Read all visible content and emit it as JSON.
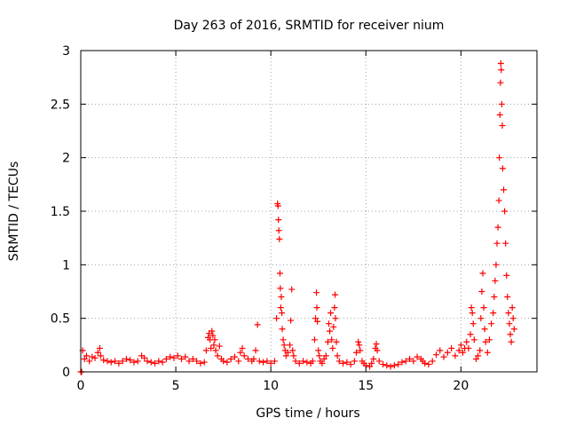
{
  "chart_data": {
    "type": "scatter",
    "title": "Day 263 of 2016, SRMTID for receiver nium",
    "xlabel": "GPS time / hours",
    "ylabel": "SRMTID / TECUs",
    "xlim": [
      0,
      24
    ],
    "ylim": [
      0,
      3
    ],
    "x_ticks": [
      {
        "value": 0,
        "label": "0"
      },
      {
        "value": 5,
        "label": "5"
      },
      {
        "value": 10,
        "label": "10"
      },
      {
        "value": 15,
        "label": "15"
      },
      {
        "value": 20,
        "label": "20"
      }
    ],
    "y_ticks": [
      {
        "value": 0,
        "label": "0"
      },
      {
        "value": 0.5,
        "label": "0.5"
      },
      {
        "value": 1,
        "label": "1"
      },
      {
        "value": 1.5,
        "label": "1.5"
      },
      {
        "value": 2,
        "label": "2"
      },
      {
        "value": 2.5,
        "label": "2.5"
      },
      {
        "value": 3,
        "label": "3"
      }
    ],
    "grid": true,
    "marker": "plus",
    "color": "#ff0000",
    "series": [
      {
        "name": "SRMTID",
        "points": [
          [
            0.0,
            0.0
          ],
          [
            0.05,
            0.0
          ],
          [
            0.1,
            0.2
          ],
          [
            0.2,
            0.12
          ],
          [
            0.3,
            0.15
          ],
          [
            0.45,
            0.1
          ],
          [
            0.6,
            0.14
          ],
          [
            0.75,
            0.13
          ],
          [
            0.9,
            0.18
          ],
          [
            1.0,
            0.22
          ],
          [
            1.05,
            0.15
          ],
          [
            1.2,
            0.11
          ],
          [
            1.4,
            0.1
          ],
          [
            1.6,
            0.09
          ],
          [
            1.8,
            0.1
          ],
          [
            2.0,
            0.08
          ],
          [
            2.2,
            0.1
          ],
          [
            2.4,
            0.12
          ],
          [
            2.6,
            0.11
          ],
          [
            2.8,
            0.09
          ],
          [
            3.0,
            0.1
          ],
          [
            3.2,
            0.15
          ],
          [
            3.35,
            0.13
          ],
          [
            3.5,
            0.1
          ],
          [
            3.7,
            0.09
          ],
          [
            3.9,
            0.08
          ],
          [
            4.1,
            0.1
          ],
          [
            4.3,
            0.09
          ],
          [
            4.5,
            0.12
          ],
          [
            4.7,
            0.14
          ],
          [
            4.9,
            0.13
          ],
          [
            5.1,
            0.15
          ],
          [
            5.3,
            0.12
          ],
          [
            5.5,
            0.14
          ],
          [
            5.7,
            0.1
          ],
          [
            5.9,
            0.12
          ],
          [
            6.1,
            0.1
          ],
          [
            6.3,
            0.08
          ],
          [
            6.5,
            0.09
          ],
          [
            6.6,
            0.2
          ],
          [
            6.7,
            0.32
          ],
          [
            6.75,
            0.36
          ],
          [
            6.8,
            0.3
          ],
          [
            6.85,
            0.22
          ],
          [
            6.9,
            0.38
          ],
          [
            6.95,
            0.34
          ],
          [
            7.0,
            0.25
          ],
          [
            7.05,
            0.3
          ],
          [
            7.1,
            0.2
          ],
          [
            7.2,
            0.15
          ],
          [
            7.3,
            0.24
          ],
          [
            7.4,
            0.12
          ],
          [
            7.5,
            0.1
          ],
          [
            7.7,
            0.09
          ],
          [
            7.9,
            0.12
          ],
          [
            8.1,
            0.14
          ],
          [
            8.3,
            0.1
          ],
          [
            8.4,
            0.18
          ],
          [
            8.5,
            0.22
          ],
          [
            8.6,
            0.15
          ],
          [
            8.8,
            0.12
          ],
          [
            9.0,
            0.1
          ],
          [
            9.1,
            0.12
          ],
          [
            9.2,
            0.2
          ],
          [
            9.3,
            0.44
          ],
          [
            9.4,
            0.1
          ],
          [
            9.6,
            0.09
          ],
          [
            9.8,
            0.1
          ],
          [
            10.0,
            0.08
          ],
          [
            10.2,
            0.1
          ],
          [
            10.3,
            0.5
          ],
          [
            10.35,
            1.57
          ],
          [
            10.38,
            1.55
          ],
          [
            10.4,
            1.42
          ],
          [
            10.42,
            1.32
          ],
          [
            10.45,
            1.24
          ],
          [
            10.48,
            0.92
          ],
          [
            10.5,
            0.78
          ],
          [
            10.52,
            0.6
          ],
          [
            10.55,
            0.7
          ],
          [
            10.58,
            0.55
          ],
          [
            10.6,
            0.4
          ],
          [
            10.65,
            0.3
          ],
          [
            10.7,
            0.25
          ],
          [
            10.75,
            0.2
          ],
          [
            10.8,
            0.15
          ],
          [
            10.9,
            0.18
          ],
          [
            11.0,
            0.25
          ],
          [
            11.05,
            0.48
          ],
          [
            11.1,
            0.77
          ],
          [
            11.15,
            0.2
          ],
          [
            11.2,
            0.15
          ],
          [
            11.3,
            0.1
          ],
          [
            11.5,
            0.08
          ],
          [
            11.7,
            0.1
          ],
          [
            11.9,
            0.09
          ],
          [
            12.1,
            0.08
          ],
          [
            12.2,
            0.1
          ],
          [
            12.3,
            0.3
          ],
          [
            12.35,
            0.5
          ],
          [
            12.4,
            0.74
          ],
          [
            12.42,
            0.6
          ],
          [
            12.45,
            0.47
          ],
          [
            12.5,
            0.2
          ],
          [
            12.55,
            0.15
          ],
          [
            12.6,
            0.1
          ],
          [
            12.7,
            0.08
          ],
          [
            12.8,
            0.12
          ],
          [
            12.9,
            0.15
          ],
          [
            13.0,
            0.28
          ],
          [
            13.05,
            0.45
          ],
          [
            13.1,
            0.38
          ],
          [
            13.15,
            0.55
          ],
          [
            13.2,
            0.3
          ],
          [
            13.25,
            0.22
          ],
          [
            13.3,
            0.42
          ],
          [
            13.35,
            0.6
          ],
          [
            13.38,
            0.72
          ],
          [
            13.4,
            0.5
          ],
          [
            13.45,
            0.28
          ],
          [
            13.5,
            0.15
          ],
          [
            13.6,
            0.1
          ],
          [
            13.8,
            0.08
          ],
          [
            14.0,
            0.09
          ],
          [
            14.2,
            0.07
          ],
          [
            14.4,
            0.1
          ],
          [
            14.5,
            0.18
          ],
          [
            14.6,
            0.28
          ],
          [
            14.65,
            0.25
          ],
          [
            14.7,
            0.2
          ],
          [
            14.8,
            0.1
          ],
          [
            14.9,
            0.08
          ],
          [
            15.0,
            0.06
          ],
          [
            15.2,
            0.05
          ],
          [
            15.3,
            0.08
          ],
          [
            15.4,
            0.12
          ],
          [
            15.5,
            0.22
          ],
          [
            15.55,
            0.26
          ],
          [
            15.6,
            0.2
          ],
          [
            15.7,
            0.1
          ],
          [
            15.9,
            0.07
          ],
          [
            16.1,
            0.06
          ],
          [
            16.3,
            0.05
          ],
          [
            16.5,
            0.06
          ],
          [
            16.7,
            0.07
          ],
          [
            16.9,
            0.09
          ],
          [
            17.1,
            0.1
          ],
          [
            17.3,
            0.12
          ],
          [
            17.5,
            0.1
          ],
          [
            17.7,
            0.14
          ],
          [
            17.9,
            0.12
          ],
          [
            18.0,
            0.1
          ],
          [
            18.1,
            0.08
          ],
          [
            18.3,
            0.07
          ],
          [
            18.5,
            0.1
          ],
          [
            18.7,
            0.16
          ],
          [
            18.9,
            0.2
          ],
          [
            19.1,
            0.14
          ],
          [
            19.3,
            0.18
          ],
          [
            19.5,
            0.22
          ],
          [
            19.7,
            0.15
          ],
          [
            19.9,
            0.2
          ],
          [
            20.0,
            0.25
          ],
          [
            20.1,
            0.18
          ],
          [
            20.2,
            0.22
          ],
          [
            20.3,
            0.28
          ],
          [
            20.4,
            0.22
          ],
          [
            20.5,
            0.35
          ],
          [
            20.55,
            0.6
          ],
          [
            20.6,
            0.55
          ],
          [
            20.65,
            0.45
          ],
          [
            20.7,
            0.3
          ],
          [
            20.8,
            0.12
          ],
          [
            20.9,
            0.15
          ],
          [
            21.0,
            0.2
          ],
          [
            21.05,
            0.5
          ],
          [
            21.1,
            0.75
          ],
          [
            21.15,
            0.92
          ],
          [
            21.2,
            0.6
          ],
          [
            21.25,
            0.4
          ],
          [
            21.3,
            0.28
          ],
          [
            21.4,
            0.18
          ],
          [
            21.5,
            0.3
          ],
          [
            21.6,
            0.45
          ],
          [
            21.7,
            0.55
          ],
          [
            21.75,
            0.7
          ],
          [
            21.8,
            0.85
          ],
          [
            21.85,
            1.0
          ],
          [
            21.9,
            1.2
          ],
          [
            21.95,
            1.35
          ],
          [
            22.0,
            1.6
          ],
          [
            22.02,
            2.0
          ],
          [
            22.05,
            2.4
          ],
          [
            22.08,
            2.7
          ],
          [
            22.1,
            2.88
          ],
          [
            22.12,
            2.82
          ],
          [
            22.15,
            2.5
          ],
          [
            22.18,
            2.3
          ],
          [
            22.2,
            1.9
          ],
          [
            22.25,
            1.7
          ],
          [
            22.3,
            1.5
          ],
          [
            22.35,
            1.2
          ],
          [
            22.4,
            0.9
          ],
          [
            22.45,
            0.7
          ],
          [
            22.5,
            0.55
          ],
          [
            22.55,
            0.45
          ],
          [
            22.6,
            0.35
          ],
          [
            22.65,
            0.28
          ],
          [
            22.7,
            0.6
          ],
          [
            22.75,
            0.5
          ],
          [
            22.8,
            0.4
          ]
        ]
      }
    ]
  }
}
